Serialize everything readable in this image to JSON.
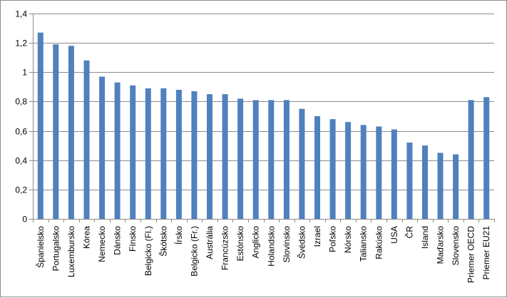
{
  "chart_data": {
    "type": "bar",
    "categories": [
      "Španielsko",
      "Portugalsko",
      "Luxembursko",
      "Kórea",
      "Nemecko",
      "Dánsko",
      "Fínsko",
      "Belgicko (Fl.)",
      "Škótsko",
      "Írsko",
      "Belgicko (Fr.)",
      "Austrália",
      "Francúzsko",
      "Estónsko",
      "Anglicko",
      "Holandsko",
      "Slovinsko",
      "Švédsko",
      "Izrael",
      "Poľsko",
      "Nórsko",
      "Taliansko",
      "Rakúsko",
      "USA",
      "ČR",
      "Island",
      "Maďarsko",
      "Slovensko",
      "Priemer OECD",
      "Priemer EU21"
    ],
    "values": [
      1.27,
      1.19,
      1.18,
      1.08,
      0.97,
      0.93,
      0.91,
      0.89,
      0.89,
      0.88,
      0.87,
      0.85,
      0.85,
      0.82,
      0.81,
      0.81,
      0.81,
      0.75,
      0.7,
      0.68,
      0.66,
      0.64,
      0.63,
      0.61,
      0.52,
      0.5,
      0.45,
      0.44,
      0.81,
      0.83
    ],
    "title": "",
    "xlabel": "",
    "ylabel": "",
    "ylim": [
      0,
      1.4
    ],
    "yticks": [
      "0",
      "0,2",
      "0,4",
      "0,6",
      "0,8",
      "1",
      "1,2",
      "1,4"
    ],
    "grid": true,
    "legend": "none",
    "bar_color": "#4f81bd",
    "grid_color": "#8c8c8c"
  }
}
